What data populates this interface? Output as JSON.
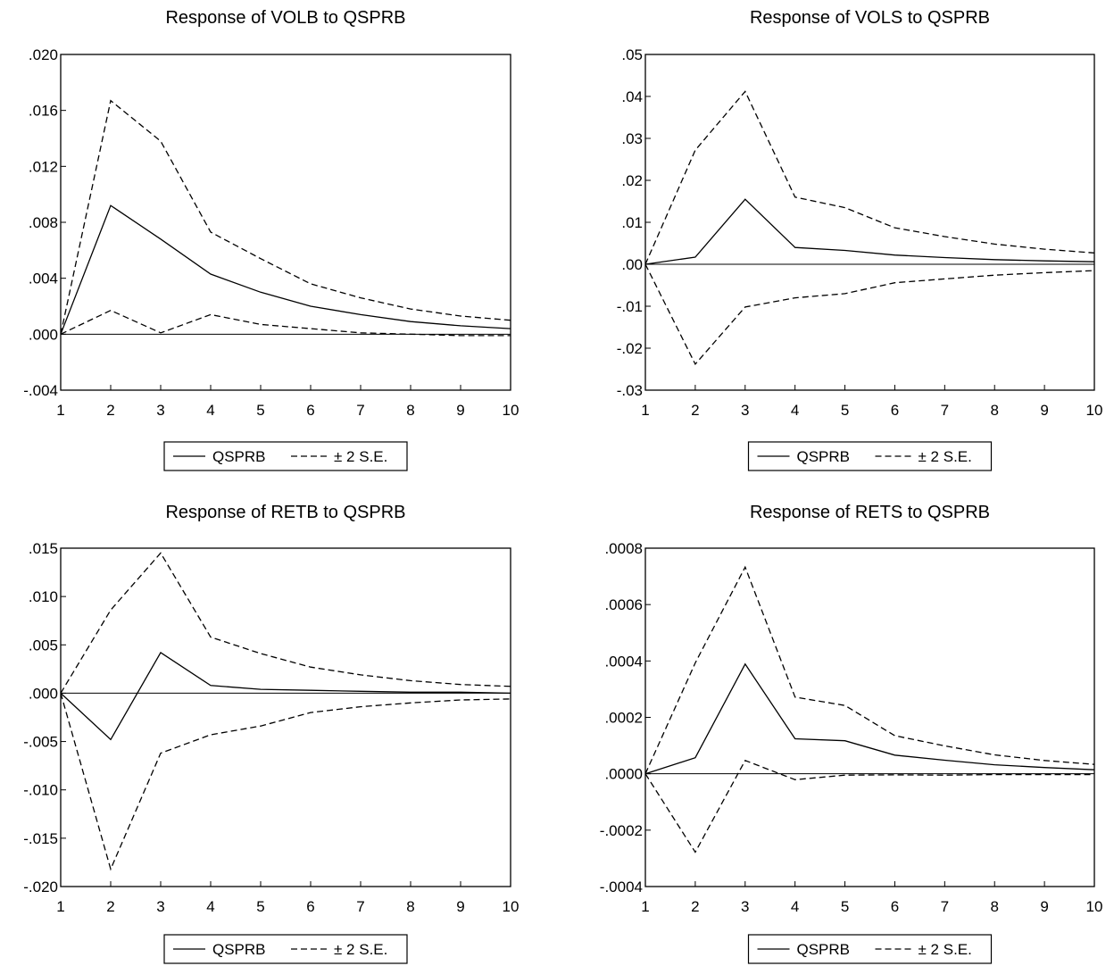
{
  "legend": {
    "solid_label": "QSPRB",
    "dashed_label": "± 2 S.E."
  },
  "colors": {
    "line": "#000000",
    "background": "#ffffff"
  },
  "chart_data": [
    {
      "type": "line",
      "title": "Response of VOLB to QSPRB",
      "x": [
        1,
        2,
        3,
        4,
        5,
        6,
        7,
        8,
        9,
        10
      ],
      "xticks": [
        "1",
        "2",
        "3",
        "4",
        "5",
        "6",
        "7",
        "8",
        "9",
        "10"
      ],
      "yticks": [
        ".020",
        ".016",
        ".012",
        ".008",
        ".004",
        ".000",
        "-.004"
      ],
      "ytick_values": [
        0.02,
        0.016,
        0.012,
        0.008,
        0.004,
        0.0,
        -0.004
      ],
      "ylim": [
        -0.004,
        0.02
      ],
      "zero_line": true,
      "legend": "bottom-center",
      "series": [
        {
          "name": "QSPRB",
          "style": "solid",
          "values": [
            0.0,
            0.0092,
            0.0068,
            0.0043,
            0.003,
            0.002,
            0.0014,
            0.0009,
            0.0006,
            0.0004
          ]
        },
        {
          "name": "± 2 S.E.",
          "style": "dashed",
          "values": [
            0.0,
            0.0167,
            0.0138,
            0.0073,
            0.0054,
            0.0036,
            0.0026,
            0.0018,
            0.0013,
            0.001
          ]
        },
        {
          "style": "dashed",
          "values": [
            0.0,
            0.0017,
            0.0001,
            0.0014,
            0.0007,
            0.0004,
            0.0001,
            0.0,
            -0.0001,
            -0.0001
          ]
        }
      ]
    },
    {
      "type": "line",
      "title": "Response of VOLS to QSPRB",
      "x": [
        1,
        2,
        3,
        4,
        5,
        6,
        7,
        8,
        9,
        10
      ],
      "xticks": [
        "1",
        "2",
        "3",
        "4",
        "5",
        "6",
        "7",
        "8",
        "9",
        "10"
      ],
      "yticks": [
        ".05",
        ".04",
        ".03",
        ".02",
        ".01",
        ".00",
        "-.01",
        "-.02",
        "-.03"
      ],
      "ytick_values": [
        0.05,
        0.04,
        0.03,
        0.02,
        0.01,
        0.0,
        -0.01,
        -0.02,
        -0.03
      ],
      "ylim": [
        -0.03,
        0.05
      ],
      "zero_line": true,
      "legend": "bottom-center",
      "series": [
        {
          "name": "QSPRB",
          "style": "solid",
          "values": [
            0.0,
            0.0017,
            0.0155,
            0.004,
            0.0033,
            0.0022,
            0.0016,
            0.0011,
            0.0008,
            0.0006
          ]
        },
        {
          "name": "± 2 S.E.",
          "style": "dashed",
          "values": [
            0.0,
            0.0272,
            0.0412,
            0.016,
            0.0135,
            0.0087,
            0.0066,
            0.0048,
            0.0036,
            0.0027
          ]
        },
        {
          "style": "dashed",
          "values": [
            0.0,
            -0.0238,
            -0.0102,
            -0.008,
            -0.007,
            -0.0044,
            -0.0035,
            -0.0026,
            -0.002,
            -0.0015
          ]
        }
      ]
    },
    {
      "type": "line",
      "title": "Response of RETB to QSPRB",
      "x": [
        1,
        2,
        3,
        4,
        5,
        6,
        7,
        8,
        9,
        10
      ],
      "xticks": [
        "1",
        "2",
        "3",
        "4",
        "5",
        "6",
        "7",
        "8",
        "9",
        "10"
      ],
      "yticks": [
        ".015",
        ".010",
        ".005",
        ".000",
        "-.005",
        "-.010",
        "-.015",
        "-.020"
      ],
      "ytick_values": [
        0.015,
        0.01,
        0.005,
        0.0,
        -0.005,
        -0.01,
        -0.015,
        -0.02
      ],
      "ylim": [
        -0.02,
        0.015
      ],
      "zero_line": true,
      "legend": "bottom-center",
      "series": [
        {
          "name": "QSPRB",
          "style": "solid",
          "values": [
            0.0,
            -0.0048,
            0.0042,
            0.0008,
            0.0004,
            0.0003,
            0.0002,
            0.0001,
            0.0001,
            0.0
          ]
        },
        {
          "name": "± 2 S.E.",
          "style": "dashed",
          "values": [
            0.0,
            0.0086,
            0.0145,
            0.0058,
            0.0041,
            0.0027,
            0.0019,
            0.0013,
            0.0009,
            0.0007
          ]
        },
        {
          "style": "dashed",
          "values": [
            0.0,
            -0.0182,
            -0.0062,
            -0.0043,
            -0.0034,
            -0.002,
            -0.0014,
            -0.001,
            -0.0007,
            -0.0006
          ]
        }
      ]
    },
    {
      "type": "line",
      "title": "Response of RETS to QSPRB",
      "x": [
        1,
        2,
        3,
        4,
        5,
        6,
        7,
        8,
        9,
        10
      ],
      "xticks": [
        "1",
        "2",
        "3",
        "4",
        "5",
        "6",
        "7",
        "8",
        "9",
        "10"
      ],
      "yticks": [
        ".0008",
        ".0006",
        ".0004",
        ".0002",
        ".0000",
        "-.0002",
        "-.0004"
      ],
      "ytick_values": [
        0.0008,
        0.0006,
        0.0004,
        0.0002,
        0.0,
        -0.0002,
        -0.0004
      ],
      "ylim": [
        -0.0004,
        0.0008
      ],
      "zero_line": true,
      "legend": "bottom-center",
      "series": [
        {
          "name": "QSPRB",
          "style": "solid",
          "values": [
            0.0,
            5.7e-05,
            0.000389,
            0.000124,
            0.000117,
            6.6e-05,
            4.8e-05,
            3.2e-05,
            2.2e-05,
            1.4e-05
          ]
        },
        {
          "name": "± 2 S.E.",
          "style": "dashed",
          "values": [
            0.0,
            0.000393,
            0.000733,
            0.000272,
            0.000242,
            0.000135,
            9.9e-05,
            6.7e-05,
            4.7e-05,
            3.3e-05
          ]
        },
        {
          "style": "dashed",
          "values": [
            0.0,
            -0.000278,
            4.7e-05,
            -2.1e-05,
            -5e-06,
            -4e-06,
            -5e-06,
            -3e-06,
            -3e-06,
            -3e-06
          ]
        }
      ]
    }
  ]
}
